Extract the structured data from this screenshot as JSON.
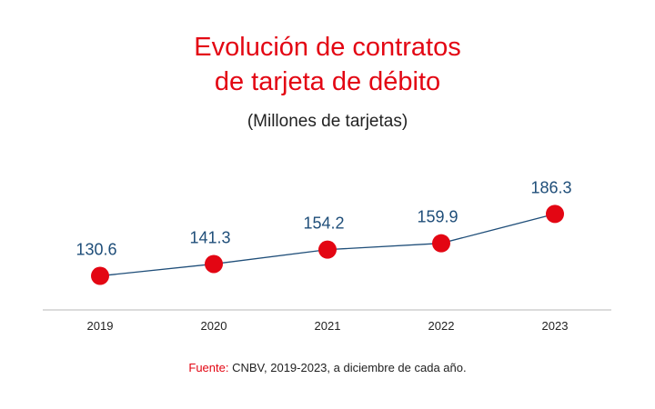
{
  "chart_data": {
    "type": "line",
    "title": [
      "Evolución de contratos",
      "de tarjeta de débito"
    ],
    "subtitle": "(Millones de tarjetas)",
    "categories": [
      "2019",
      "2020",
      "2021",
      "2022",
      "2023"
    ],
    "values": [
      130.6,
      141.3,
      154.2,
      159.9,
      186.3
    ],
    "data_labels": [
      "130.6",
      "141.3",
      "154.2",
      "159.9",
      "186.3"
    ],
    "ylim": [
      100,
      225
    ],
    "grid": false,
    "legend": "none",
    "colors": {
      "title": "#e30613",
      "marker": "#e30613",
      "line": "#1f4e79",
      "labels": "#1f4e79",
      "axis": "#c8c8c8"
    }
  },
  "source": {
    "label": "Fuente:",
    "text": " CNBV, 2019-2023, a diciembre de cada año."
  }
}
